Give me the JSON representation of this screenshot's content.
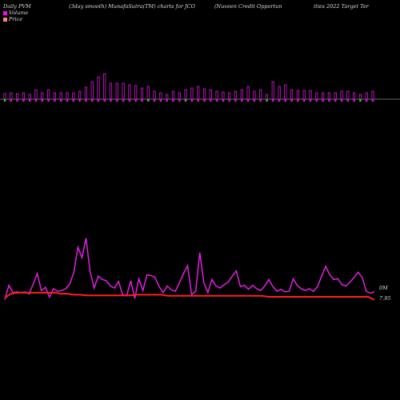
{
  "header": {
    "left": "Daily PVM",
    "mid": "(3day smooth) MunafaSutra(TM) charts for JCO",
    "right_a": "(Nuveen  Credit Opportun",
    "right_b": "ities 2022  Target Ter"
  },
  "legend": [
    {
      "label": "Volume",
      "color": "#ff00ff"
    },
    {
      "label": "Price",
      "color": "#ff6666"
    }
  ],
  "colors": {
    "volume_bar": "#d41ad4",
    "volume_bar_down": "#40c040",
    "volume_line": "#e020e0",
    "price_line": "#ff2020",
    "axis_line": "#888888"
  },
  "labels": {
    "volume_last": "0M",
    "price_last": "7.95"
  },
  "chart_data": [
    {
      "type": "bar",
      "name": "pvm-bars",
      "values": [
        7,
        8,
        7,
        8,
        6,
        12,
        8,
        12,
        8,
        8,
        8,
        8,
        10,
        15,
        22,
        28,
        32,
        20,
        20,
        20,
        18,
        17,
        14,
        16,
        10,
        8,
        6,
        10,
        8,
        12,
        14,
        16,
        13,
        12,
        10,
        9,
        8,
        10,
        12,
        16,
        10,
        12,
        6,
        22,
        16,
        18,
        12,
        11,
        11,
        11,
        8,
        8,
        8,
        8,
        10,
        10,
        8,
        6,
        8,
        10
      ],
      "up": [
        false,
        true,
        true,
        true,
        true,
        true,
        true,
        true,
        true,
        true,
        true,
        true,
        true,
        true,
        true,
        true,
        true,
        true,
        true,
        true,
        true,
        true,
        true,
        false,
        true,
        true,
        true,
        true,
        true,
        false,
        true,
        true,
        true,
        true,
        true,
        true,
        true,
        true,
        true,
        true,
        true,
        true,
        false,
        true,
        true,
        true,
        true,
        true,
        true,
        true,
        true,
        true,
        true,
        true,
        true,
        true,
        true,
        false,
        true,
        true
      ]
    },
    {
      "type": "line",
      "name": "volume",
      "values": [
        4,
        26,
        15,
        16,
        15,
        16,
        13,
        28,
        44,
        18,
        23,
        8,
        21,
        17,
        18,
        21,
        28,
        46,
        84,
        68,
        98,
        47,
        22,
        40,
        35,
        33,
        25,
        22,
        32,
        12,
        10,
        33,
        6,
        36,
        18,
        42,
        41,
        38,
        24,
        15,
        25,
        19,
        17,
        30,
        44,
        56,
        12,
        17,
        76,
        30,
        15,
        35,
        25,
        22,
        27,
        31,
        40,
        48,
        24,
        26,
        20,
        26,
        21,
        18,
        25,
        35,
        24,
        17,
        20,
        16,
        17,
        36,
        26,
        21,
        18,
        21,
        17,
        24,
        40,
        55,
        42,
        35,
        36,
        27,
        25,
        31,
        38,
        46,
        38,
        17,
        14,
        16
      ],
      "ylim": [
        0,
        100
      ]
    },
    {
      "type": "line",
      "name": "price",
      "values": [
        7.96,
        7.98,
        7.985,
        7.985,
        7.985,
        7.985,
        7.985,
        7.985,
        7.985,
        7.98,
        7.98,
        7.975,
        7.975,
        7.972,
        7.972,
        7.972,
        7.972,
        7.972,
        7.972,
        7.972,
        7.972,
        7.975,
        7.975,
        7.975,
        7.975,
        7.975,
        7.97,
        7.97,
        7.97,
        7.97,
        7.97,
        7.97,
        7.97,
        7.97,
        7.97,
        7.97,
        7.97,
        7.97,
        7.97,
        7.97,
        7.97,
        7.97,
        7.965,
        7.965,
        7.965,
        7.965,
        7.965,
        7.965,
        7.965,
        7.965,
        7.965,
        7.965,
        7.965,
        7.965,
        7.965,
        7.965,
        7.965,
        7.965,
        7.965,
        7.95
      ],
      "ylim": [
        7.93,
        8.0
      ]
    }
  ]
}
